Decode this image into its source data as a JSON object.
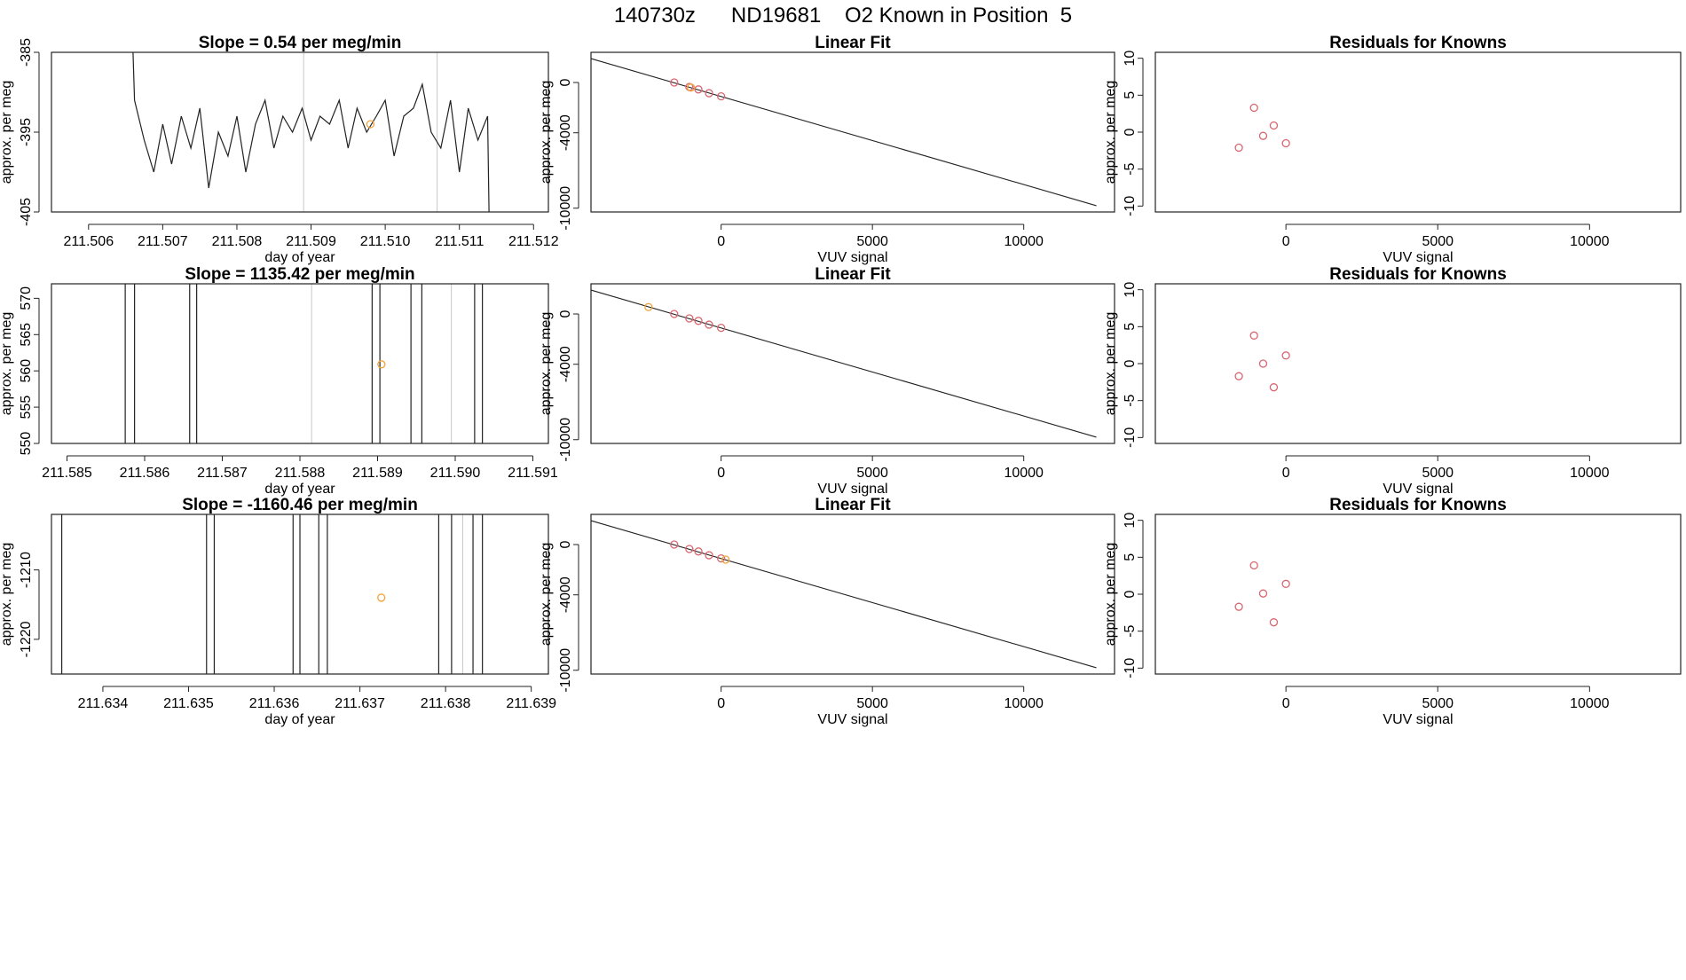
{
  "title": "140730z      ND19681    O2 Known in Position  5",
  "chart_data": [
    {
      "type": "line",
      "title": "Slope =  0.54  per meg/min",
      "xlabel": "day of year",
      "ylabel": "approx. per meg",
      "xlim": [
        211.5055,
        211.5122
      ],
      "ylim": [
        -405,
        -385
      ],
      "xticks": [
        211.506,
        211.507,
        211.508,
        211.509,
        211.51,
        211.511,
        211.512
      ],
      "xtick_labels": [
        "211.506",
        "211.507",
        "211.508",
        "211.509",
        "211.510",
        "211.511",
        "211.512"
      ],
      "yticks": [
        -405,
        -395,
        -385
      ],
      "ytick_labels": [
        "-405",
        "-395",
        "-385"
      ],
      "gray_vlines": [
        211.5089,
        211.5107
      ],
      "x": [
        211.5066,
        211.50662,
        211.50675,
        211.50688,
        211.507,
        211.50712,
        211.50725,
        211.50738,
        211.5075,
        211.50762,
        211.50775,
        211.50788,
        211.508,
        211.50812,
        211.50825,
        211.50838,
        211.5085,
        211.50862,
        211.50875,
        211.50888,
        211.509,
        211.50912,
        211.50925,
        211.50938,
        211.5095,
        211.50962,
        211.50975,
        211.50988,
        211.51,
        211.51012,
        211.51025,
        211.51038,
        211.5105,
        211.51062,
        211.51075,
        211.51088,
        211.511,
        211.51112,
        211.51125,
        211.51138,
        211.5114
      ],
      "y": [
        -385,
        -391,
        -396,
        -400,
        -394,
        -399,
        -393,
        -397,
        -392,
        -402,
        -395,
        -398,
        -393,
        -400,
        -394,
        -391,
        -397,
        -393,
        -395,
        -392,
        -396,
        -393,
        -394,
        -391,
        -397,
        -392,
        -395,
        -393,
        -391,
        -398,
        -393,
        -392,
        -389,
        -395,
        -397,
        -391,
        -400,
        -392,
        -396,
        -393,
        -405
      ],
      "highlight": {
        "x": 211.5098,
        "y": -394,
        "color": "#f2a33a"
      }
    },
    {
      "type": "line",
      "title": "Slope =  1135.42  per meg/min",
      "xlabel": "day of year",
      "ylabel": "approx. per meg",
      "xlim": [
        211.5848,
        211.5912
      ],
      "ylim": [
        550,
        572
      ],
      "xticks": [
        211.585,
        211.586,
        211.587,
        211.588,
        211.589,
        211.59,
        211.591
      ],
      "xtick_labels": [
        "211.585",
        "211.586",
        "211.587",
        "211.588",
        "211.589",
        "211.590",
        "211.591"
      ],
      "yticks": [
        550,
        555,
        560,
        565,
        570
      ],
      "ytick_labels": [
        "550",
        "555",
        "560",
        "565",
        "570"
      ],
      "gray_vlines": [
        211.58815,
        211.58995
      ],
      "vlines": [
        211.58575,
        211.58587,
        211.58658,
        211.58667,
        211.58893,
        211.58903,
        211.58943,
        211.58957,
        211.59025,
        211.59035
      ],
      "highlight": {
        "x": 211.58905,
        "y": 560.9,
        "color": "#f2a33a"
      }
    },
    {
      "type": "line",
      "title": "Slope =  -1160.46  per meg/min",
      "xlabel": "day of year",
      "ylabel": "approx. per meg",
      "xlim": [
        211.6334,
        211.6392
      ],
      "ylim": [
        -1225,
        -1202
      ],
      "xticks": [
        211.634,
        211.635,
        211.636,
        211.637,
        211.638,
        211.639
      ],
      "xtick_labels": [
        "211.634",
        "211.635",
        "211.636",
        "211.637",
        "211.638",
        "211.639"
      ],
      "yticks": [
        -1220,
        -1210
      ],
      "ytick_labels": [
        "-1220",
        "-1210"
      ],
      "gray_vlines": [
        211.6382
      ],
      "vlines": [
        211.63352,
        211.63521,
        211.6353,
        211.63622,
        211.6363,
        211.63652,
        211.63662,
        211.63792,
        211.63807,
        211.63832,
        211.63843
      ],
      "highlight": {
        "x": 211.63725,
        "y": -1214,
        "color": "#f2a33a"
      }
    },
    {
      "type": "scatter",
      "title": "Linear Fit",
      "xlabel": "VUV signal",
      "ylabel": "approx. per meg",
      "xlim": [
        -4300,
        13000
      ],
      "ylim": [
        -10300,
        2400
      ],
      "xticks": [
        0,
        5000,
        10000
      ],
      "xtick_labels": [
        "0",
        "5000",
        "10000"
      ],
      "yticks": [
        -10000,
        -4000,
        0
      ],
      "ytick_labels": [
        "-10000",
        "-4000",
        "0"
      ],
      "fit_line": {
        "x": [
          -4300,
          12400
        ],
        "y": [
          1900,
          -9800
        ]
      },
      "known_points": {
        "color": "#d9666f",
        "x": [
          -1550,
          -1050,
          -750,
          -400,
          0
        ],
        "y": [
          0,
          -350,
          -550,
          -850,
          -1100
        ]
      },
      "sample_points": {
        "color": "#f2a33a",
        "x": [
          -1000
        ],
        "y": [
          -400
        ]
      }
    },
    {
      "type": "scatter",
      "title": "Linear Fit",
      "xlabel": "VUV signal",
      "ylabel": "approx. per meg",
      "xlim": [
        -4300,
        13000
      ],
      "ylim": [
        -10300,
        2400
      ],
      "xticks": [
        0,
        5000,
        10000
      ],
      "xtick_labels": [
        "0",
        "5000",
        "10000"
      ],
      "yticks": [
        -10000,
        -4000,
        0
      ],
      "ytick_labels": [
        "-10000",
        "-4000",
        "0"
      ],
      "fit_line": {
        "x": [
          -4300,
          12400
        ],
        "y": [
          1900,
          -9800
        ]
      },
      "known_points": {
        "color": "#d9666f",
        "x": [
          -1550,
          -1050,
          -750,
          -400,
          0
        ],
        "y": [
          0,
          -350,
          -550,
          -850,
          -1100
        ]
      },
      "sample_points": {
        "color": "#f2a33a",
        "x": [
          -2400
        ],
        "y": [
          550
        ]
      }
    },
    {
      "type": "scatter",
      "title": "Linear Fit",
      "xlabel": "VUV signal",
      "ylabel": "approx. per meg",
      "xlim": [
        -4300,
        13000
      ],
      "ylim": [
        -10300,
        2400
      ],
      "xticks": [
        0,
        5000,
        10000
      ],
      "xtick_labels": [
        "0",
        "5000",
        "10000"
      ],
      "yticks": [
        -10000,
        -4000,
        0
      ],
      "ytick_labels": [
        "-10000",
        "-4000",
        "0"
      ],
      "fit_line": {
        "x": [
          -4300,
          12400
        ],
        "y": [
          1900,
          -9800
        ]
      },
      "known_points": {
        "color": "#d9666f",
        "x": [
          -1550,
          -1050,
          -750,
          -400,
          0
        ],
        "y": [
          0,
          -350,
          -550,
          -850,
          -1100
        ]
      },
      "sample_points": {
        "color": "#f2a33a",
        "x": [
          150
        ],
        "y": [
          -1200
        ]
      }
    },
    {
      "type": "scatter",
      "title": "Residuals for Knowns",
      "xlabel": "VUV signal",
      "ylabel": "approx. per meg",
      "xlim": [
        -4300,
        13000
      ],
      "ylim": [
        -10.8,
        10.8
      ],
      "xticks": [
        0,
        5000,
        10000
      ],
      "xtick_labels": [
        "0",
        "5000",
        "10000"
      ],
      "yticks": [
        -10,
        -5,
        0,
        5,
        10
      ],
      "ytick_labels": [
        "-10",
        "-5",
        "0",
        "5",
        "10"
      ],
      "known_points": {
        "color": "#d9666f",
        "x": [
          -1550,
          -1050,
          -750,
          -400,
          0
        ],
        "y": [
          -2.1,
          3.3,
          -0.5,
          0.9,
          -1.5
        ]
      }
    },
    {
      "type": "scatter",
      "title": "Residuals for Knowns",
      "xlabel": "VUV signal",
      "ylabel": "approx. per meg",
      "xlim": [
        -4300,
        13000
      ],
      "ylim": [
        -10.8,
        10.8
      ],
      "xticks": [
        0,
        5000,
        10000
      ],
      "xtick_labels": [
        "0",
        "5000",
        "10000"
      ],
      "yticks": [
        -10,
        -5,
        0,
        5,
        10
      ],
      "ytick_labels": [
        "-10",
        "-5",
        "0",
        "5",
        "10"
      ],
      "known_points": {
        "color": "#d9666f",
        "x": [
          -1550,
          -1050,
          -750,
          -400,
          0
        ],
        "y": [
          -1.7,
          3.8,
          0.0,
          -3.2,
          1.1
        ]
      }
    },
    {
      "type": "scatter",
      "title": "Residuals for Knowns",
      "xlabel": "VUV signal",
      "ylabel": "approx. per meg",
      "xlim": [
        -4300,
        13000
      ],
      "ylim": [
        -10.8,
        10.8
      ],
      "xticks": [
        0,
        5000,
        10000
      ],
      "xtick_labels": [
        "0",
        "5000",
        "10000"
      ],
      "yticks": [
        -10,
        -5,
        0,
        5,
        10
      ],
      "ytick_labels": [
        "-10",
        "-5",
        "0",
        "5",
        "10"
      ],
      "known_points": {
        "color": "#d9666f",
        "x": [
          -1550,
          -1050,
          -750,
          -400,
          0
        ],
        "y": [
          -1.7,
          3.9,
          0.1,
          -3.8,
          1.4
        ]
      }
    }
  ]
}
